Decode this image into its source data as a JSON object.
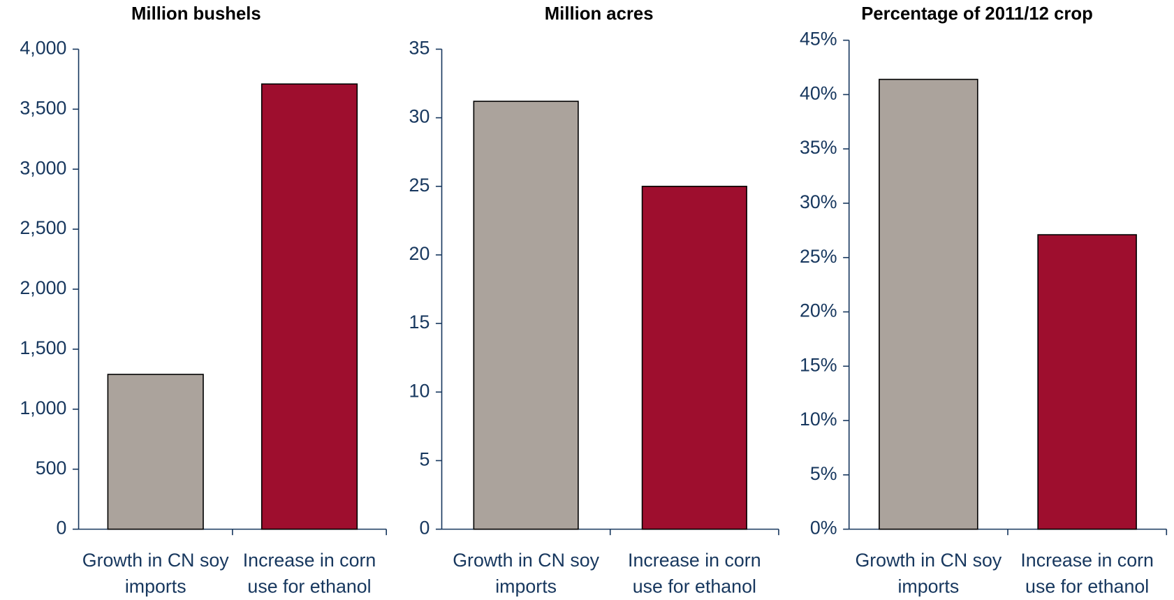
{
  "chart_data": [
    {
      "type": "bar",
      "title": "Million bushels",
      "categories": [
        "Growth in CN soy imports",
        "Increase in corn use for ethanol"
      ],
      "values": [
        1290,
        3710
      ],
      "colors": [
        "#aba39c",
        "#9e0e2e"
      ],
      "ylim": [
        0,
        4000
      ],
      "yticks": [
        0,
        500,
        {
          "value": 1000,
          "label": "1,000"
        },
        {
          "value": 1500,
          "label": "1,500"
        },
        {
          "value": 2000,
          "label": "2,000"
        },
        {
          "value": 2500,
          "label": "2,500"
        },
        {
          "value": 3000,
          "label": "3,000"
        },
        {
          "value": 3500,
          "label": "3,500"
        },
        {
          "value": 4000,
          "label": "4,000"
        }
      ]
    },
    {
      "type": "bar",
      "title": "Million acres",
      "categories": [
        "Growth in CN soy imports",
        "Increase in corn use for ethanol"
      ],
      "values": [
        31.2,
        25.0
      ],
      "colors": [
        "#aba39c",
        "#9e0e2e"
      ],
      "ylim": [
        0,
        35
      ],
      "yticks": [
        0,
        5,
        10,
        15,
        20,
        25,
        30,
        35
      ]
    },
    {
      "type": "bar",
      "title": "Percentage of 2011/12 crop",
      "categories": [
        "Growth in CN soy imports",
        "Increase in corn use for ethanol"
      ],
      "values": [
        41.4,
        27.1
      ],
      "colors": [
        "#aba39c",
        "#9e0e2e"
      ],
      "ylim": [
        0,
        45
      ],
      "yticks": [
        {
          "value": 0,
          "label": "0%"
        },
        {
          "value": 5,
          "label": "5%"
        },
        {
          "value": 10,
          "label": "10%"
        },
        {
          "value": 15,
          "label": "15%"
        },
        {
          "value": 20,
          "label": "20%"
        },
        {
          "value": 25,
          "label": "25%"
        },
        {
          "value": 30,
          "label": "30%"
        },
        {
          "value": 35,
          "label": "35%"
        },
        {
          "value": 40,
          "label": "40%"
        },
        {
          "value": 45,
          "label": "45%"
        }
      ]
    }
  ]
}
